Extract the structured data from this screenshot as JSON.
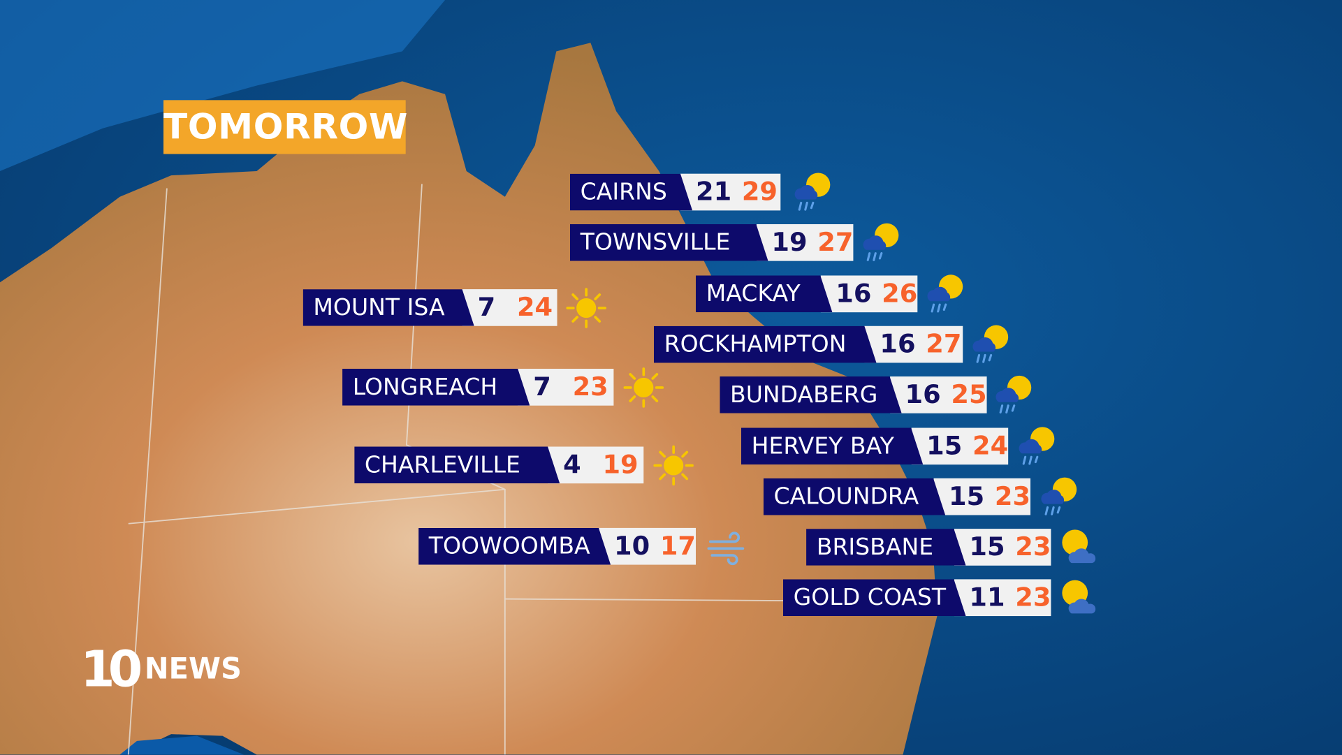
{
  "header": {
    "title": "TOMORROW"
  },
  "logo": {
    "number": "10",
    "text": "NEWS"
  },
  "colors": {
    "badge": "#f3a629",
    "label_bg": "#0d0a6b",
    "min_temp": "#14105f",
    "max_temp": "#f7622b"
  },
  "forecasts": [
    {
      "city": "CAIRNS",
      "min": "21",
      "max": "29",
      "icon": "rain-sun-icon"
    },
    {
      "city": "TOWNSVILLE",
      "min": "19",
      "max": "27",
      "icon": "rain-sun-icon"
    },
    {
      "city": "MACKAY",
      "min": "16",
      "max": "26",
      "icon": "rain-sun-icon"
    },
    {
      "city": "ROCKHAMPTON",
      "min": "16",
      "max": "27",
      "icon": "rain-sun-icon"
    },
    {
      "city": "BUNDABERG",
      "min": "16",
      "max": "25",
      "icon": "rain-sun-icon"
    },
    {
      "city": "HERVEY BAY",
      "min": "15",
      "max": "24",
      "icon": "rain-sun-icon"
    },
    {
      "city": "CALOUNDRA",
      "min": "15",
      "max": "23",
      "icon": "rain-sun-icon"
    },
    {
      "city": "BRISBANE",
      "min": "15",
      "max": "23",
      "icon": "partly-cloudy-icon"
    },
    {
      "city": "GOLD COAST",
      "min": "11",
      "max": "23",
      "icon": "partly-cloudy-icon"
    },
    {
      "city": "MOUNT ISA",
      "min": "7",
      "max": "24",
      "icon": "sun-icon"
    },
    {
      "city": "LONGREACH",
      "min": "7",
      "max": "23",
      "icon": "sun-icon"
    },
    {
      "city": "CHARLEVILLE",
      "min": "4",
      "max": "19",
      "icon": "sun-icon"
    },
    {
      "city": "TOOWOOMBA",
      "min": "10",
      "max": "17",
      "icon": "wind-icon"
    }
  ]
}
